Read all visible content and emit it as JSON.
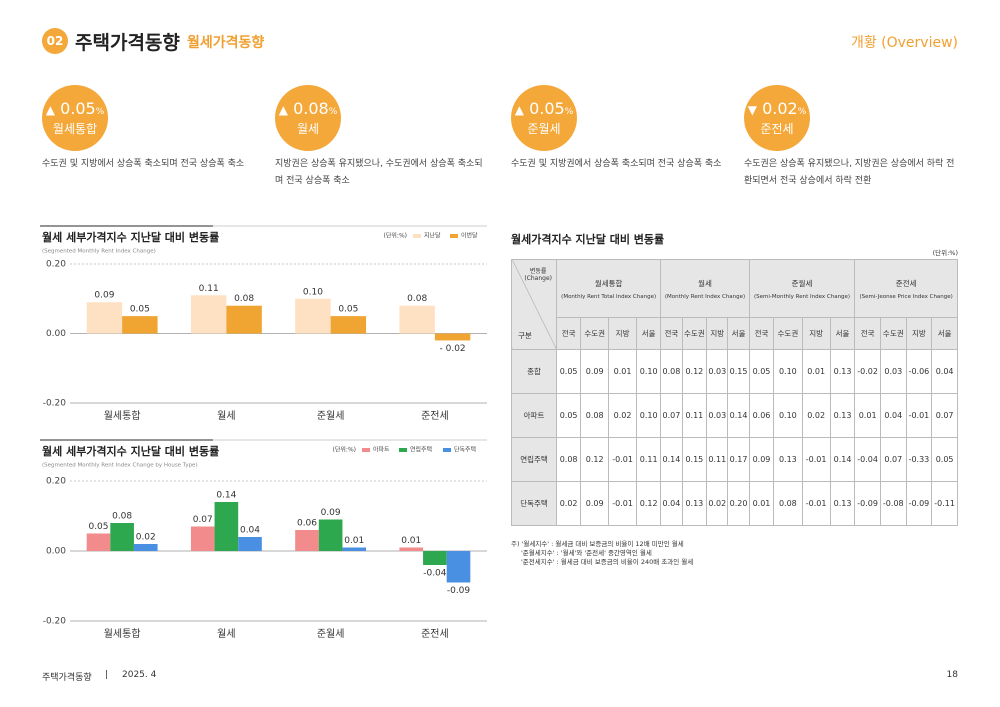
{
  "header": {
    "number": "02",
    "title": "주택가격동향",
    "subtitle": "월세가격동향",
    "section": "개황 (Overview)"
  },
  "highlights": [
    {
      "arrow": "▲",
      "value": "0.05",
      "unit": "%",
      "label": "월세통합",
      "text": "수도권 및 지방에서 상승폭 축소되며 전국 상승폭 축소"
    },
    {
      "arrow": "▲",
      "value": "0.08",
      "unit": "%",
      "label": "월세",
      "text": "지방권은 상승폭 유지됐으나, 수도권에서 상승폭 축소되며 전국 상승폭 축소"
    },
    {
      "arrow": "▲",
      "value": "0.05",
      "unit": "%",
      "label": "준월세",
      "text": "수도권 및 지방권에서 상승폭 축소되며 전국 상승폭 축소"
    },
    {
      "arrow": "▼",
      "value": "0.02",
      "unit": "%",
      "label": "준전세",
      "text": "수도권은 상승폭 유지됐으나, 지방권은 상승에서 하락 전환되면서 전국 상승에서 하락 전환"
    }
  ],
  "chart_data": [
    {
      "type": "bar",
      "title": "월세 세부가격지수 지난달 대비 변동률",
      "subtitle": "(Segmented Monthly Rent Index Change)",
      "unit": "(단위:%)",
      "categories": [
        "월세통합",
        "월세",
        "준월세",
        "준전세"
      ],
      "series": [
        {
          "name": "지난달",
          "color": "#fde1c2",
          "values": [
            0.09,
            0.11,
            0.1,
            0.08
          ],
          "value_labels": [
            "0.09",
            "0.11",
            "0.10",
            "0.08"
          ]
        },
        {
          "name": "이번달",
          "color": "#f0a432",
          "values": [
            0.05,
            0.08,
            0.05,
            -0.02
          ],
          "value_labels": [
            "0.05",
            "0.08",
            "0.05",
            "- 0.02"
          ]
        }
      ],
      "ylim": [
        -0.2,
        0.2
      ],
      "yticks": [
        {
          "value": -0.2,
          "label": "-0.20"
        },
        {
          "value": 0,
          "label": "0.00"
        },
        {
          "value": 0.2,
          "label": "0.20"
        }
      ],
      "grid": true
    },
    {
      "type": "bar",
      "title": "월세 세부가격지수 지난달 대비 변동률",
      "subtitle": "(Segmented Monthly Rent Index Change by House Type)",
      "unit": "(단위:%)",
      "categories": [
        "월세통합",
        "월세",
        "준월세",
        "준전세"
      ],
      "series": [
        {
          "name": "아파트",
          "color": "#f28b8b",
          "values": [
            0.05,
            0.07,
            0.06,
            0.01
          ]
        },
        {
          "name": "연립주택",
          "color": "#2ea84e",
          "values": [
            0.08,
            0.14,
            0.09,
            -0.04
          ]
        },
        {
          "name": "단독주택",
          "color": "#4a90e2",
          "values": [
            0.02,
            0.04,
            0.01,
            -0.09
          ]
        }
      ],
      "ylim": [
        -0.2,
        0.2
      ],
      "yticks": [
        {
          "value": -0.2,
          "label": "-0.20"
        },
        {
          "value": 0,
          "label": "0.00"
        },
        {
          "value": 0.2,
          "label": "0.20"
        }
      ],
      "grid": true
    }
  ],
  "table": {
    "title": "월세가격지수 지난달 대비 변동률",
    "unit": "(단위:%)",
    "corner_top": "변동률\n(Change)",
    "corner_bottom": "구분",
    "groups": [
      {
        "name": "월세통합",
        "en": "(Monthly Rent Total Index Change)"
      },
      {
        "name": "월세",
        "en": "(Monthly Rent Index Change)"
      },
      {
        "name": "준월세",
        "en": "(Semi-Monthly Rent Index Change)"
      },
      {
        "name": "준전세",
        "en": "(Semi-Jeonse Price Index Change)"
      }
    ],
    "subheaders": [
      "전국",
      "수도권",
      "지방",
      "서울"
    ],
    "rows": [
      {
        "label": "종합",
        "values": [
          "0.05",
          "0.09",
          "0.01",
          "0.10",
          "0.08",
          "0.12",
          "0.03",
          "0.15",
          "0.05",
          "0.10",
          "0.01",
          "0.13",
          "-0.02",
          "0.03",
          "-0.06",
          "0.04"
        ]
      },
      {
        "label": "아파트",
        "values": [
          "0.05",
          "0.08",
          "0.02",
          "0.10",
          "0.07",
          "0.11",
          "0.03",
          "0.14",
          "0.06",
          "0.10",
          "0.02",
          "0.13",
          "0.01",
          "0.04",
          "-0.01",
          "0.07"
        ]
      },
      {
        "label": "연립주택",
        "values": [
          "0.08",
          "0.12",
          "-0.01",
          "0.11",
          "0.14",
          "0.15",
          "0.11",
          "0.17",
          "0.09",
          "0.13",
          "-0.01",
          "0.14",
          "-0.04",
          "0.07",
          "-0.33",
          "0.05"
        ]
      },
      {
        "label": "단독주택",
        "values": [
          "0.02",
          "0.09",
          "-0.01",
          "0.12",
          "0.04",
          "0.13",
          "0.02",
          "0.20",
          "0.01",
          "0.08",
          "-0.01",
          "0.13",
          "-0.09",
          "-0.08",
          "-0.09",
          "-0.11"
        ]
      }
    ],
    "notes": [
      "주) '월세지수' : 월세금 대비 보증금의 비율이 12배 미만인 월세",
      "'준월세지수' : '월세'와 '준전세' 중간영역인 월세",
      "'준전세지수' : 월세금 대비 보증금의 비율이 240배 초과인 월세"
    ]
  },
  "footer": {
    "left": "주택가격동향",
    "divider": "|",
    "date": "2025. 4",
    "page": "18"
  }
}
